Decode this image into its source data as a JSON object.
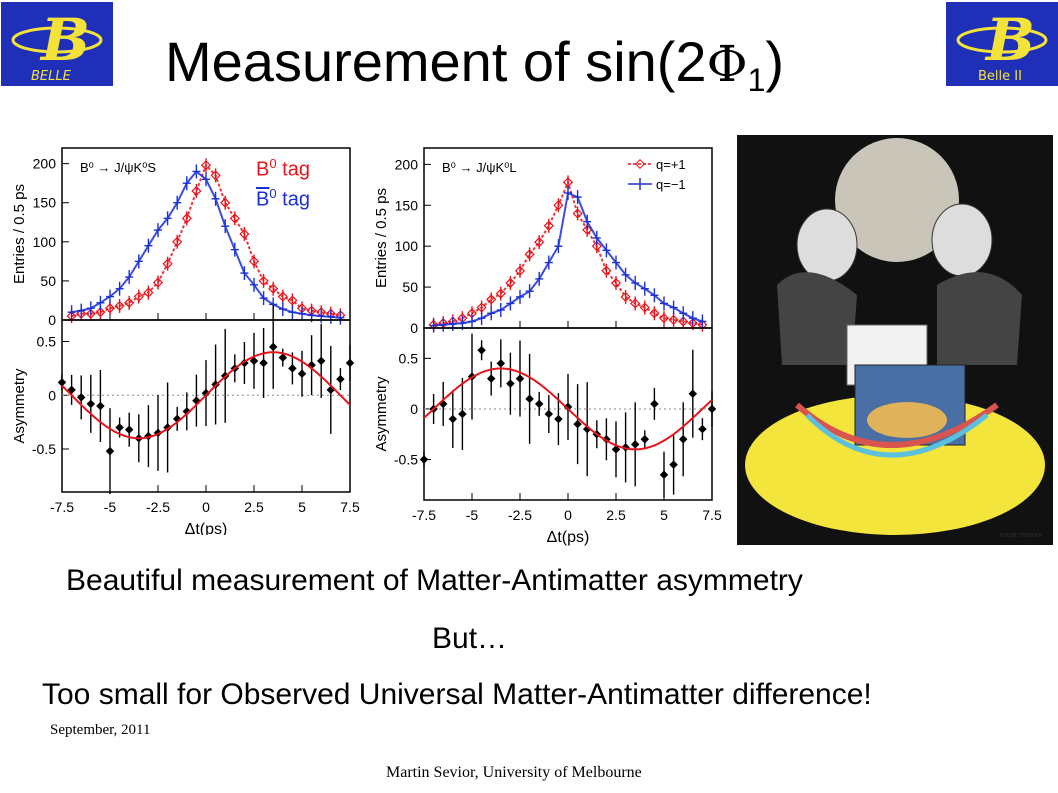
{
  "title": {
    "prefix": "Measurement of sin(2",
    "symbol": "Φ",
    "subscript": "1",
    "suffix": ")"
  },
  "logos": {
    "left_text": "BELLE",
    "right_text": "Belle II"
  },
  "left_plot": {
    "process_label": "B⁰ → J/ψK⁰S",
    "tag1": {
      "text": "B",
      "sup": "0",
      "suffix": " tag",
      "color": "#e8141b"
    },
    "tag2": {
      "text": "B",
      "sup": "0",
      "suffix": " tag",
      "color": "#1a2fd6"
    }
  },
  "right_plot": {
    "process_label": "B⁰ → J/ψK⁰L",
    "legend": [
      "q=+1",
      "q=−1"
    ]
  },
  "chart_data": [
    {
      "type": "line",
      "panel": "left-top",
      "xlabel": "",
      "ylabel": "Entries / 0.5 ps",
      "xlim": [
        -7.5,
        7.5
      ],
      "ylim": [
        0,
        220
      ],
      "yticks": [
        0,
        50,
        100,
        150,
        200
      ],
      "series": [
        {
          "color": "#e8141b",
          "x": [
            -7,
            -6.5,
            -6,
            -5.5,
            -5,
            -4.5,
            -4,
            -3.5,
            -3,
            -2.5,
            -2,
            -1.5,
            -1,
            -0.5,
            0,
            0.5,
            1,
            1.5,
            2,
            2.5,
            3,
            3.5,
            4,
            4.5,
            5,
            5.5,
            6,
            6.5,
            7
          ],
          "y": [
            5,
            8,
            8,
            10,
            15,
            18,
            22,
            30,
            35,
            48,
            72,
            100,
            130,
            165,
            198,
            185,
            150,
            130,
            110,
            75,
            50,
            40,
            30,
            25,
            15,
            12,
            10,
            8,
            6
          ]
        },
        {
          "color": "#1a2fd6",
          "x": [
            -7,
            -6.5,
            -6,
            -5.5,
            -5,
            -4.5,
            -4,
            -3.5,
            -3,
            -2.5,
            -2,
            -1.5,
            -1,
            -0.5,
            0,
            0.5,
            1,
            1.5,
            2,
            2.5,
            3,
            3.5,
            4,
            4.5,
            5,
            5.5,
            6,
            6.5,
            7
          ],
          "y": [
            10,
            12,
            15,
            22,
            30,
            40,
            55,
            75,
            95,
            115,
            130,
            150,
            175,
            190,
            180,
            155,
            120,
            90,
            60,
            45,
            28,
            20,
            14,
            10,
            8,
            6,
            5,
            4,
            3
          ]
        }
      ]
    },
    {
      "type": "line",
      "panel": "left-bottom",
      "xlabel": "Δt(ps)",
      "ylabel": "Asymmetry",
      "xlim": [
        -7.5,
        7.5
      ],
      "ylim": [
        -0.9,
        0.7
      ],
      "xticks": [
        "-7.5",
        "-5",
        "-2.5",
        "0",
        "2.5",
        "5",
        "7.5"
      ],
      "yticks": [
        -0.5,
        0,
        0.5
      ],
      "series": [
        {
          "color": "#000000",
          "x": [
            -7.5,
            -7,
            -6.5,
            -6,
            -5.5,
            -5,
            -4.5,
            -4,
            -3.5,
            -3,
            -2.5,
            -2,
            -1.5,
            -1,
            -0.5,
            0,
            0.5,
            1,
            1.5,
            2,
            2.5,
            3,
            3.5,
            4,
            4.5,
            5,
            5.5,
            6,
            6.5,
            7,
            7.5
          ],
          "y": [
            0.12,
            0.05,
            -0.02,
            -0.08,
            -0.1,
            -0.52,
            -0.3,
            -0.32,
            -0.4,
            -0.38,
            -0.35,
            -0.3,
            -0.22,
            -0.15,
            -0.05,
            0.02,
            0.1,
            0.18,
            0.25,
            0.3,
            0.32,
            0.3,
            0.45,
            0.35,
            0.25,
            0.2,
            0.28,
            0.32,
            0.05,
            0.15,
            0.3
          ]
        },
        {
          "color": "#e8141b",
          "fit": "sine",
          "amplitude": 0.4,
          "period": 14
        }
      ]
    },
    {
      "type": "line",
      "panel": "right-top",
      "xlabel": "",
      "ylabel": "Entries / 0.5 ps",
      "xlim": [
        -7.5,
        7.5
      ],
      "ylim": [
        0,
        220
      ],
      "yticks": [
        0,
        50,
        100,
        150,
        200
      ],
      "series": [
        {
          "name": "q=+1",
          "color": "#e8141b",
          "x": [
            -7,
            -6.5,
            -6,
            -5.5,
            -5,
            -4.5,
            -4,
            -3.5,
            -3,
            -2.5,
            -2,
            -1.5,
            -1,
            -0.5,
            0,
            0.5,
            1,
            1.5,
            2,
            2.5,
            3,
            3.5,
            4,
            4.5,
            5,
            5.5,
            6,
            6.5,
            7
          ],
          "y": [
            4,
            6,
            8,
            12,
            18,
            25,
            35,
            42,
            55,
            70,
            90,
            105,
            125,
            150,
            178,
            140,
            120,
            100,
            70,
            55,
            38,
            30,
            25,
            18,
            12,
            10,
            8,
            6,
            4
          ]
        },
        {
          "name": "q=−1",
          "color": "#1a2fd6",
          "x": [
            -7,
            -6.5,
            -6,
            -5.5,
            -5,
            -4.5,
            -4,
            -3.5,
            -3,
            -2.5,
            -2,
            -1.5,
            -1,
            -0.5,
            0,
            0.5,
            1,
            1.5,
            2,
            2.5,
            3,
            3.5,
            4,
            4.5,
            5,
            5.5,
            6,
            6.5,
            7
          ],
          "y": [
            3,
            4,
            5,
            6,
            8,
            12,
            18,
            22,
            30,
            38,
            45,
            60,
            80,
            100,
            165,
            160,
            130,
            110,
            95,
            80,
            65,
            55,
            48,
            40,
            30,
            25,
            18,
            12,
            8
          ]
        }
      ]
    },
    {
      "type": "line",
      "panel": "right-bottom",
      "xlabel": "Δt(ps)",
      "ylabel": "Asymmetry",
      "xlim": [
        -7.5,
        7.5
      ],
      "ylim": [
        -0.9,
        0.8
      ],
      "xticks": [
        "-7.5",
        "-5",
        "-2.5",
        "0",
        "2.5",
        "5",
        "7.5"
      ],
      "yticks": [
        -0.5,
        0,
        0.5
      ],
      "series": [
        {
          "color": "#000000",
          "x": [
            -7.5,
            -7,
            -6.5,
            -6,
            -5.5,
            -5,
            -4.5,
            -4,
            -3.5,
            -3,
            -2.5,
            -2,
            -1.5,
            -1,
            -0.5,
            0,
            0.5,
            1,
            1.5,
            2,
            2.5,
            3,
            3.5,
            4,
            4.5,
            5,
            5.5,
            6,
            6.5,
            7,
            7.5
          ],
          "y": [
            -0.5,
            0.0,
            0.05,
            -0.1,
            -0.05,
            0.32,
            0.58,
            0.3,
            0.45,
            0.25,
            0.3,
            0.1,
            0.05,
            -0.05,
            -0.1,
            0.02,
            -0.15,
            -0.2,
            -0.25,
            -0.3,
            -0.4,
            -0.38,
            -0.35,
            -0.3,
            0.05,
            -0.65,
            -0.55,
            -0.3,
            0.15,
            -0.2,
            0.0
          ]
        },
        {
          "color": "#e8141b",
          "fit": "sine",
          "amplitude": -0.4,
          "period": 14
        }
      ]
    }
  ],
  "photo": {
    "caption": "©2008 STUDIO R"
  },
  "text_lines": {
    "line1": "Beautiful measurement of Matter-Antimatter asymmetry",
    "line2": "But…",
    "line3": "Too small for Observed Universal Matter-Antimatter difference!"
  },
  "date": "September, 2011",
  "footer": "Martin Sevior, University of Melbourne"
}
